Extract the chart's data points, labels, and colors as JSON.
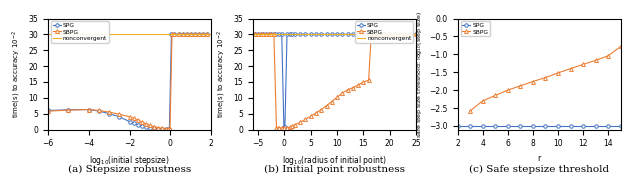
{
  "fig1": {
    "caption": "(a) Stepsize robustness",
    "xlabel": "log$_{10}$(initial stepsize)",
    "ylabel": "time(s) to accuracy $10^{-2}$",
    "xlim": [
      -6,
      2
    ],
    "ylim": [
      0,
      35
    ],
    "yticks": [
      0,
      5,
      10,
      15,
      20,
      25,
      30,
      35
    ],
    "xticks": [
      -6,
      -4,
      -2,
      0,
      2
    ],
    "nonconv_y": 30,
    "spg_x": [
      -6,
      -5,
      -4,
      -3.5,
      -3,
      -2.5,
      -2,
      -1.8,
      -1.6,
      -1.4,
      -1.2,
      -1.0,
      -0.8,
      -0.6,
      -0.4,
      -0.2,
      -0.1,
      -0.05,
      0.05,
      0.2,
      0.4,
      0.6,
      0.8,
      1.0,
      1.2,
      1.4,
      1.6,
      1.8
    ],
    "spg_y": [
      6.0,
      6.2,
      6.3,
      5.8,
      5.0,
      4.0,
      2.5,
      2.0,
      1.5,
      1.0,
      0.7,
      0.5,
      0.35,
      0.25,
      0.18,
      0.12,
      0.08,
      0.05,
      30,
      30,
      30,
      30,
      30,
      30,
      30,
      30,
      30,
      30
    ],
    "sbpg_x": [
      -6,
      -5,
      -4,
      -3.5,
      -3,
      -2.5,
      -2,
      -1.8,
      -1.6,
      -1.4,
      -1.2,
      -1.0,
      -0.8,
      -0.6,
      -0.4,
      -0.2,
      -0.1,
      -0.02,
      0.08,
      0.2,
      0.4,
      0.6,
      0.8,
      1.0,
      1.2,
      1.4,
      1.6,
      1.8
    ],
    "sbpg_y": [
      5.8,
      6.1,
      6.3,
      6.0,
      5.5,
      4.8,
      4.0,
      3.5,
      3.0,
      2.4,
      1.8,
      1.3,
      0.9,
      0.6,
      0.4,
      0.25,
      0.15,
      0.08,
      30,
      30,
      30,
      30,
      30,
      30,
      30,
      30,
      30,
      30
    ]
  },
  "fig2": {
    "caption": "(b) Initial point robustness",
    "xlabel": "log$_{10}$(radius of initial point)",
    "ylabel": "time(s) to accuracy $10^{-2}$",
    "xlim": [
      -6,
      25
    ],
    "ylim": [
      0,
      35
    ],
    "yticks": [
      0,
      5,
      10,
      15,
      20,
      25,
      30,
      35
    ],
    "xticks": [
      -5,
      0,
      5,
      10,
      15,
      20,
      25
    ],
    "nonconv_y": 30,
    "spg_x": [
      -6,
      -5.5,
      -5,
      -4.5,
      -4,
      -3.5,
      -3,
      -2.5,
      -2,
      -1.5,
      -1,
      -0.5,
      -0.1,
      0.1,
      0.5,
      1.0,
      1.5,
      2,
      3,
      4,
      5,
      6,
      7,
      8,
      9,
      10,
      11,
      12,
      13,
      14,
      15,
      16,
      17,
      18,
      19,
      20,
      21,
      22,
      23,
      24,
      25
    ],
    "spg_y": [
      30,
      30,
      30,
      30,
      30,
      30,
      30,
      30,
      30,
      30,
      30,
      30,
      0.9,
      0.9,
      30,
      30,
      30,
      30,
      30,
      30,
      30,
      30,
      30,
      30,
      30,
      30,
      30,
      30,
      30,
      30,
      30,
      30,
      30,
      30,
      30,
      30,
      30,
      30,
      30,
      30,
      30
    ],
    "sbpg_x": [
      -6,
      -5.5,
      -5,
      -4.5,
      -4,
      -3.5,
      -3,
      -2.5,
      -2,
      -1.5,
      -1.2,
      -1.0,
      -0.5,
      0,
      0.5,
      1,
      1.5,
      2,
      3,
      4,
      5,
      6,
      7,
      8,
      9,
      10,
      11,
      12,
      13,
      14,
      15,
      16,
      16.5,
      17,
      18,
      19,
      20,
      21,
      22,
      23,
      24,
      25
    ],
    "sbpg_y": [
      30,
      30,
      30,
      30,
      30,
      30,
      30,
      30,
      30,
      0.5,
      0.4,
      0.4,
      0.5,
      0.5,
      0.5,
      0.7,
      1.0,
      1.5,
      2.3,
      3.2,
      4.2,
      5.2,
      6.3,
      7.5,
      8.8,
      10.2,
      11.5,
      12.5,
      13.2,
      14.0,
      15.0,
      15.5,
      30,
      30,
      30,
      30,
      30,
      30,
      30,
      30,
      30,
      30
    ]
  },
  "fig3": {
    "caption": "(c) Safe stepsize threshold",
    "xlabel": "r",
    "ylabel": "safe step size threshold: log$_{10}$(step size)",
    "xlim": [
      2,
      15
    ],
    "ylim": [
      -3.1,
      0
    ],
    "yticks": [
      -3.0,
      -2.5,
      -2.0,
      -1.5,
      -1.0,
      -0.5,
      0.0
    ],
    "xticks": [
      2,
      4,
      6,
      8,
      10,
      12,
      14
    ],
    "spg_x": [
      2,
      3,
      4,
      5,
      6,
      7,
      8,
      9,
      10,
      11,
      12,
      13,
      14,
      15
    ],
    "spg_y": [
      -3.0,
      -3.0,
      -3.0,
      -3.0,
      -3.0,
      -3.0,
      -3.0,
      -3.0,
      -3.0,
      -3.0,
      -3.0,
      -3.0,
      -3.0,
      -3.0
    ],
    "sbpg_x": [
      3,
      4,
      5,
      6,
      7,
      8,
      9,
      10,
      11,
      12,
      13,
      14,
      15
    ],
    "sbpg_y": [
      -2.58,
      -2.3,
      -2.15,
      -2.0,
      -1.88,
      -1.76,
      -1.65,
      -1.52,
      -1.4,
      -1.28,
      -1.17,
      -1.04,
      -0.78
    ]
  },
  "colors": {
    "spg": "#4472C4",
    "sbpg": "#ED7D31",
    "nonconv": "#EDB120"
  }
}
